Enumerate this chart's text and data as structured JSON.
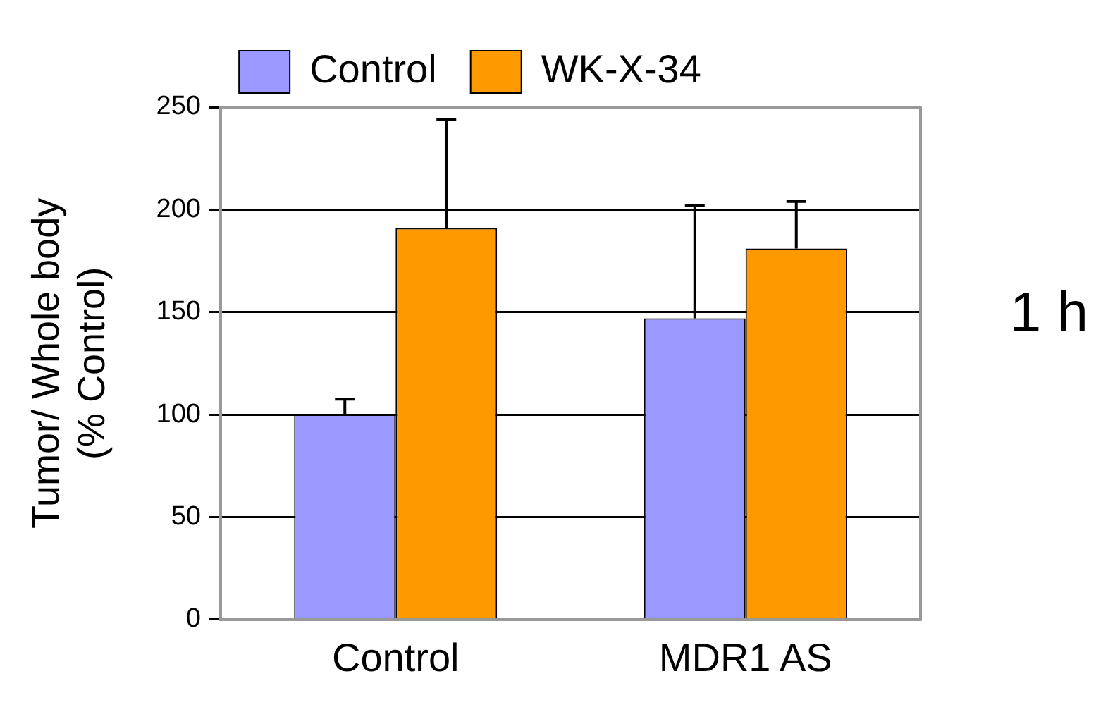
{
  "chart_data": {
    "type": "bar",
    "ylabel": "Tumor/ Whole body\n(% Control)",
    "categories": [
      "Control",
      "MDR1 AS"
    ],
    "series": [
      {
        "name": "Control",
        "color": "#9999ff",
        "values": [
          100,
          147
        ],
        "errors": [
          [
            100,
            107.5
          ],
          [
            147,
            202
          ]
        ]
      },
      {
        "name": "WK-X-34",
        "color": "#ff9900",
        "values": [
          191,
          181
        ],
        "errors": [
          [
            191,
            244
          ],
          [
            181,
            204
          ]
        ]
      }
    ],
    "ylim": [
      0,
      250
    ],
    "yticks": [
      0,
      50,
      100,
      150,
      200,
      250
    ],
    "grid": "y",
    "legend": "top",
    "annotations": [
      "1 h"
    ]
  }
}
